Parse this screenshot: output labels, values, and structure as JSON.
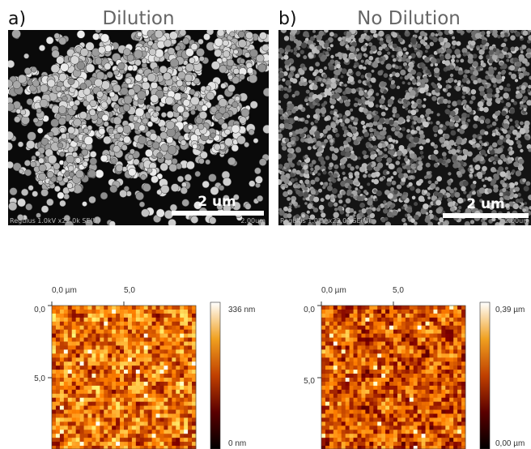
{
  "panels": [
    {
      "label": "a)",
      "title": "Dilution",
      "sem": {
        "scale_bar": "2 um",
        "footer": "Regulus 1.0kV x22.0k SE(U)",
        "footer_right": "2.00um"
      },
      "afm": {
        "x_axis": [
          "0,0 µm",
          "5,0"
        ],
        "y_axis": [
          "0,0",
          "5,0"
        ],
        "colorbar": {
          "max": "336 nm",
          "min": "0 nm"
        }
      }
    },
    {
      "label": "b)",
      "title": "No Dilution",
      "sem": {
        "scale_bar": "2 um",
        "footer": "Regulus 1.0kV x22.0k SE(U)",
        "footer_right": "2.00um"
      },
      "afm": {
        "x_axis": [
          "0,0 µm",
          "5,0"
        ],
        "y_axis": [
          "0,0",
          "5,0"
        ],
        "colorbar": {
          "max": "0,39 µm",
          "min": "0,00 µm"
        }
      }
    }
  ]
}
